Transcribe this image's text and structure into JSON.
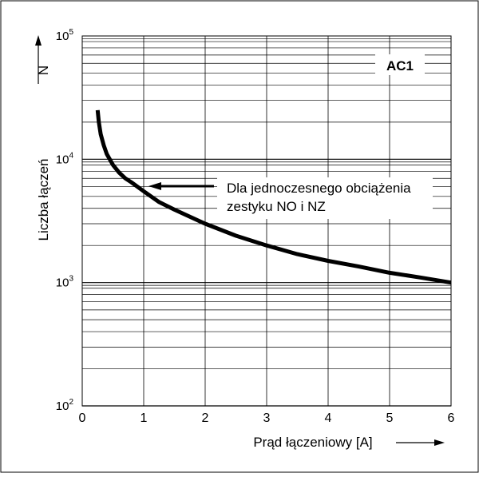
{
  "chart_data": {
    "type": "line",
    "title": "",
    "label_box": "AC1",
    "xlabel": "Prąd łączeniowy [A]",
    "ylabel": "Liczba łączeń",
    "ysymbol": "N",
    "xlim": [
      0,
      6
    ],
    "ylim": [
      100,
      100000
    ],
    "yscale": "log",
    "grid": true,
    "xticks": [
      "0",
      "1",
      "2",
      "3",
      "4",
      "5",
      "6"
    ],
    "yticks": [
      {
        "base": "10",
        "exp": "2",
        "value": 100
      },
      {
        "base": "10",
        "exp": "3",
        "value": 1000
      },
      {
        "base": "10",
        "exp": "4",
        "value": 10000
      },
      {
        "base": "10",
        "exp": "5",
        "value": 100000
      }
    ],
    "annotation": {
      "lines": [
        "Dla jednoczesnego obciążenia",
        "zestyku NO i NZ"
      ],
      "points_to": {
        "x": 1.0,
        "y": 5800
      }
    },
    "series": [
      {
        "x": [
          0.25,
          0.27,
          0.3,
          0.35,
          0.4,
          0.5,
          0.6,
          0.7,
          0.8,
          1.0,
          1.25,
          1.5,
          2.0,
          2.5,
          3.0,
          3.5,
          4.0,
          4.5,
          5.0,
          5.5,
          6.0
        ],
        "y": [
          25000,
          20000,
          16000,
          13000,
          11000,
          9000,
          7800,
          7000,
          6500,
          5500,
          4500,
          3900,
          3000,
          2400,
          2000,
          1700,
          1500,
          1350,
          1200,
          1100,
          1000
        ]
      }
    ]
  }
}
